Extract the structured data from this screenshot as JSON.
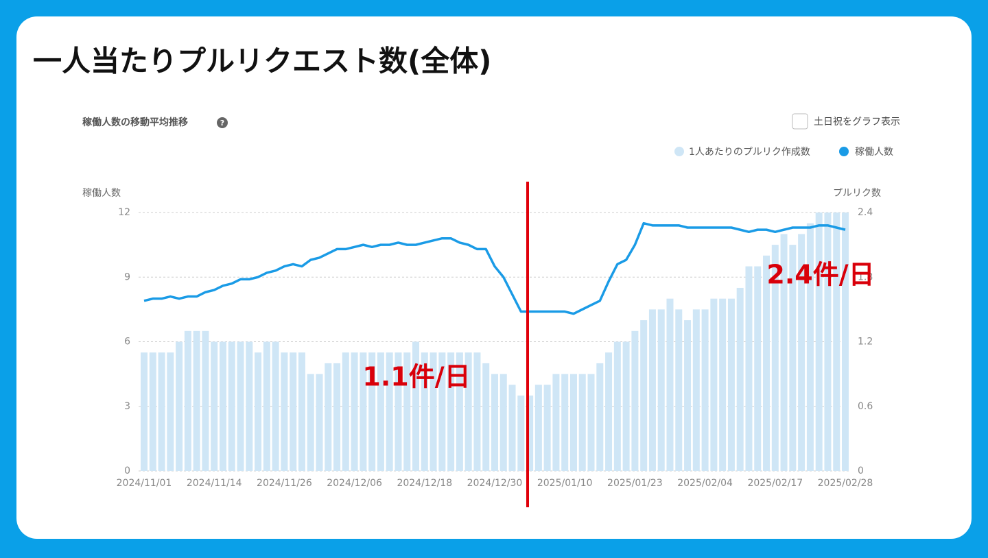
{
  "chart_data": {
    "type": "bar_line",
    "title": "一人当たりプルリクエスト数(全体)",
    "subtitle": "稼働人数の移動平均推移",
    "checkbox_label": "土日祝をグラフ表示",
    "ylabel": "稼働人数",
    "y2label": "プルリク数",
    "annotations": [
      "1.1件/日",
      "2.4件/日"
    ],
    "categories": [
      "2024/11/01",
      null,
      null,
      null,
      null,
      null,
      null,
      null,
      "2024/11/14",
      null,
      null,
      null,
      null,
      null,
      null,
      null,
      "2024/11/26",
      null,
      null,
      null,
      null,
      null,
      null,
      null,
      "2024/12/06",
      null,
      null,
      null,
      null,
      null,
      null,
      null,
      "2024/12/18",
      null,
      null,
      null,
      null,
      null,
      null,
      null,
      "2024/12/30",
      null,
      null,
      null,
      null,
      null,
      null,
      null,
      "2025/01/10",
      null,
      null,
      null,
      null,
      null,
      null,
      null,
      "2025/01/23",
      null,
      null,
      null,
      null,
      null,
      null,
      null,
      "2025/02/04",
      null,
      null,
      null,
      null,
      null,
      null,
      null,
      "2025/02/17",
      null,
      null,
      null,
      null,
      null,
      null,
      null,
      "2025/02/28"
    ],
    "series": [
      {
        "name": "1人あたりのプルリク作成数",
        "type": "bar",
        "axis": "y2",
        "color": "#cfe6f6",
        "values": [
          1.1,
          1.1,
          1.1,
          1.1,
          1.2,
          1.3,
          1.3,
          1.3,
          1.2,
          1.2,
          1.2,
          1.2,
          1.2,
          1.1,
          1.2,
          1.2,
          1.1,
          1.1,
          1.1,
          0.9,
          0.9,
          1.0,
          1.0,
          1.1,
          1.1,
          1.1,
          1.1,
          1.1,
          1.1,
          1.1,
          1.1,
          1.2,
          1.1,
          1.1,
          1.1,
          1.1,
          1.1,
          1.1,
          1.1,
          1.0,
          0.9,
          0.9,
          0.8,
          0.7,
          0.7,
          0.8,
          0.8,
          0.9,
          0.9,
          0.9,
          0.9,
          0.9,
          1.0,
          1.1,
          1.2,
          1.2,
          1.3,
          1.4,
          1.5,
          1.5,
          1.6,
          1.5,
          1.4,
          1.5,
          1.5,
          1.6,
          1.6,
          1.6,
          1.7,
          1.9,
          1.9,
          2.0,
          2.1,
          2.2,
          2.1,
          2.2,
          2.3,
          2.4,
          2.4,
          2.4,
          2.4
        ]
      },
      {
        "name": "稼働人数",
        "type": "line",
        "axis": "y",
        "color": "#1a9be6",
        "values": [
          7.9,
          8.0,
          8.0,
          8.1,
          8.0,
          8.1,
          8.1,
          8.3,
          8.4,
          8.6,
          8.7,
          8.9,
          8.9,
          9.0,
          9.2,
          9.3,
          9.5,
          9.6,
          9.5,
          9.8,
          9.9,
          10.1,
          10.3,
          10.3,
          10.4,
          10.5,
          10.4,
          10.5,
          10.5,
          10.6,
          10.5,
          10.5,
          10.6,
          10.7,
          10.8,
          10.8,
          10.6,
          10.5,
          10.3,
          10.3,
          9.5,
          9.0,
          8.2,
          7.4,
          7.4,
          7.4,
          7.4,
          7.4,
          7.4,
          7.3,
          7.5,
          7.7,
          7.9,
          8.8,
          9.6,
          9.8,
          10.5,
          11.5,
          11.4,
          11.4,
          11.4,
          11.4,
          11.3,
          11.3,
          11.3,
          11.3,
          11.3,
          11.3,
          11.2,
          11.1,
          11.2,
          11.2,
          11.1,
          11.2,
          11.3,
          11.3,
          11.3,
          11.4,
          11.4,
          11.3,
          11.2
        ]
      }
    ],
    "ylim": [
      0,
      12
    ],
    "yticks": [
      0,
      3,
      6,
      9,
      12
    ],
    "y2lim": [
      0,
      2.4
    ],
    "y2ticks": [
      0,
      0.6,
      1.2,
      1.8,
      2.4
    ],
    "grid": true,
    "legend": "top-right"
  }
}
